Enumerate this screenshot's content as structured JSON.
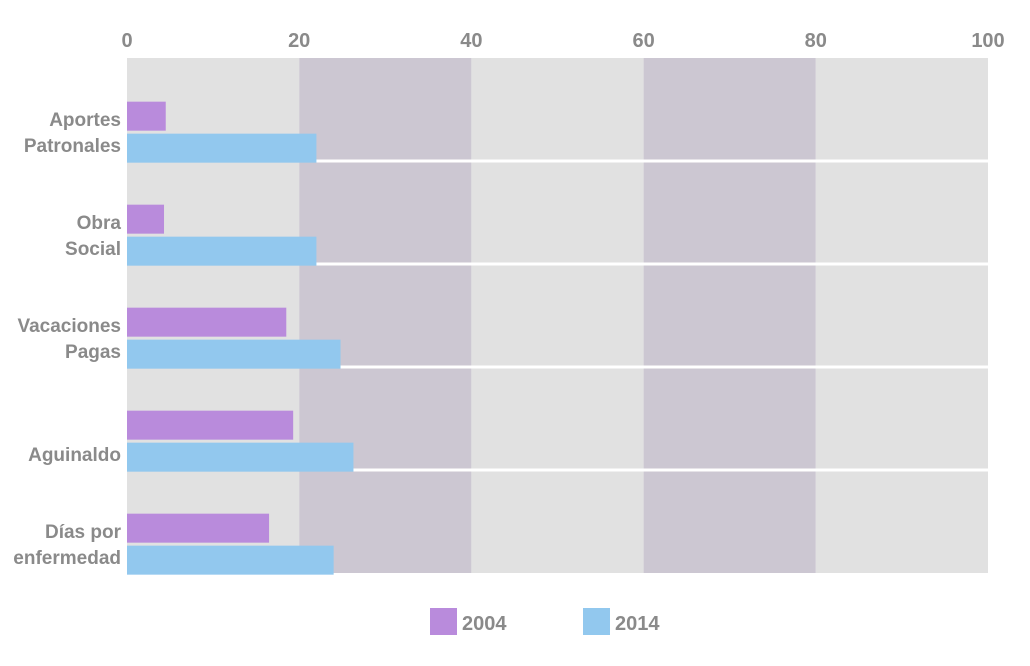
{
  "chart_data": {
    "type": "bar",
    "orientation": "horizontal",
    "categories": [
      [
        "Aportes",
        "Patronales"
      ],
      [
        "Obra",
        "Social"
      ],
      [
        "Vacaciones",
        "Pagas"
      ],
      [
        "Aguinaldo"
      ],
      [
        "Días por",
        "enfermedad"
      ]
    ],
    "series": [
      {
        "name": "2004",
        "color": "#b98bdc",
        "values": [
          4.5,
          4.3,
          18.5,
          19.3,
          16.5
        ]
      },
      {
        "name": "2014",
        "color": "#92c8ee",
        "values": [
          22,
          22,
          24.8,
          26.3,
          24
        ]
      }
    ],
    "xlim": [
      0,
      100
    ],
    "x_ticks": [
      0,
      20,
      40,
      60,
      80,
      100
    ],
    "x_tick_labels": [
      "0",
      "20",
      "40",
      "60",
      "80",
      "100"
    ],
    "axis_position": "top",
    "legend_position": "bottom-center",
    "background_bands": {
      "light": "#e1e1e1",
      "dark": "#ccc7d2"
    },
    "title": "",
    "xlabel": "",
    "ylabel": ""
  }
}
